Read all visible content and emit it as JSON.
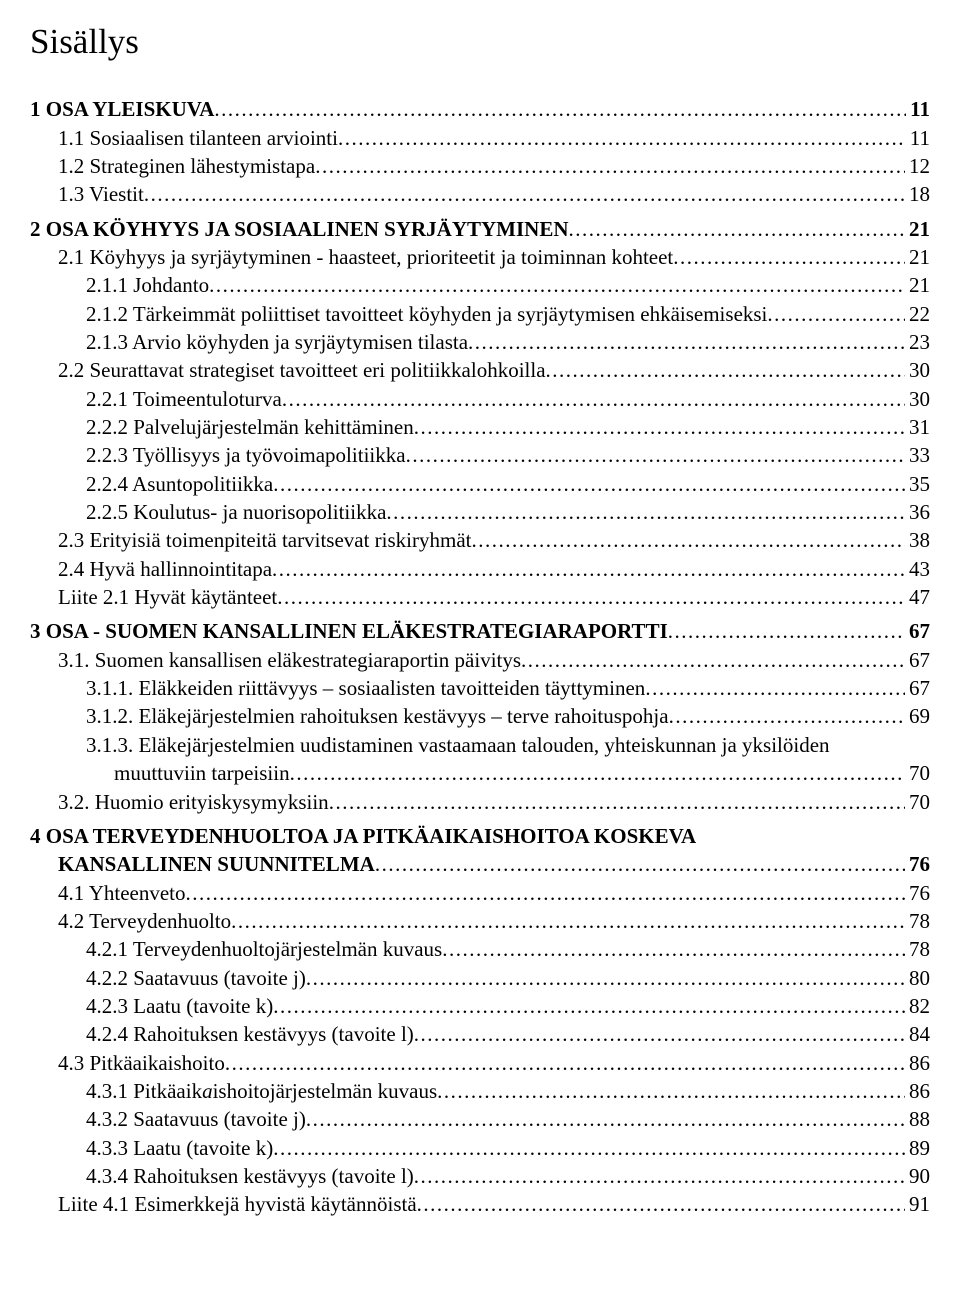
{
  "title": "Sisällys",
  "entries": [
    {
      "indent": 0,
      "bold": true,
      "text": "1 OSA YLEISKUVA",
      "page": "11",
      "gapBefore": false
    },
    {
      "indent": 1,
      "bold": false,
      "text": "1.1 Sosiaalisen tilanteen arviointi",
      "page": "11",
      "gapBefore": false
    },
    {
      "indent": 1,
      "bold": false,
      "text": "1.2 Strateginen lähestymistapa",
      "page": "12",
      "gapBefore": false
    },
    {
      "indent": 1,
      "bold": false,
      "text": "1.3 Viestit",
      "page": "18",
      "gapBefore": false
    },
    {
      "indent": 0,
      "bold": true,
      "text": "2 OSA KÖYHYYS JA SOSIAALINEN SYRJÄYTYMINEN",
      "page": "21",
      "gapBefore": true
    },
    {
      "indent": 1,
      "bold": false,
      "text": "2.1 Köyhyys ja syrjäytyminen - haasteet, prioriteetit ja toiminnan kohteet",
      "page": "21",
      "gapBefore": false
    },
    {
      "indent": 2,
      "bold": false,
      "text": "2.1.1 Johdanto",
      "page": "21",
      "gapBefore": false
    },
    {
      "indent": 2,
      "bold": false,
      "text": "2.1.2 Tärkeimmät poliittiset tavoitteet köyhyden ja syrjäytymisen ehkäisemiseksi",
      "page": "22",
      "gapBefore": false
    },
    {
      "indent": 2,
      "bold": false,
      "text": "2.1.3 Arvio köyhyden ja syrjäytymisen tilasta",
      "page": "23",
      "gapBefore": false
    },
    {
      "indent": 1,
      "bold": false,
      "text": "2.2 Seurattavat strategiset tavoitteet eri politiikkalohkoilla",
      "page": "30",
      "gapBefore": false
    },
    {
      "indent": 2,
      "bold": false,
      "text": "2.2.1 Toimeentuloturva",
      "page": "30",
      "gapBefore": false
    },
    {
      "indent": 2,
      "bold": false,
      "text": "2.2.2 Palvelujärjestelmän kehittäminen",
      "page": "31",
      "gapBefore": false
    },
    {
      "indent": 2,
      "bold": false,
      "text": "2.2.3 Työllisyys ja työvoimapolitiikka",
      "page": "33",
      "gapBefore": false
    },
    {
      "indent": 2,
      "bold": false,
      "text": "2.2.4 Asuntopolitiikka",
      "page": "35",
      "gapBefore": false
    },
    {
      "indent": 2,
      "bold": false,
      "text": "2.2.5 Koulutus- ja nuorisopolitiikka",
      "page": "36",
      "gapBefore": false
    },
    {
      "indent": 1,
      "bold": false,
      "text": "2.3 Erityisiä toimenpiteitä tarvitsevat riskiryhmät",
      "page": "38",
      "gapBefore": false
    },
    {
      "indent": 1,
      "bold": false,
      "text": "2.4 Hyvä hallinnointitapa",
      "page": "43",
      "gapBefore": false
    },
    {
      "indent": 1,
      "bold": false,
      "text": "Liite 2.1 Hyvät käytänteet",
      "page": "47",
      "gapBefore": false
    },
    {
      "indent": 0,
      "bold": true,
      "text": "3 OSA - SUOMEN KANSALLINEN ELÄKESTRATEGIARAPORTTI",
      "page": "67",
      "gapBefore": true
    },
    {
      "indent": 1,
      "bold": false,
      "text": "3.1. Suomen kansallisen eläkestrategiaraportin päivitys",
      "page": "67",
      "gapBefore": false
    },
    {
      "indent": 2,
      "bold": false,
      "text": "3.1.1. Eläkkeiden riittävyys – sosiaalisten tavoitteiden täyttyminen",
      "page": "67",
      "gapBefore": false
    },
    {
      "indent": 2,
      "bold": false,
      "text": "3.1.2. Eläkejärjestelmien rahoituksen kestävyys – terve rahoituspohja",
      "page": "69",
      "gapBefore": false
    },
    {
      "indent": 2,
      "bold": false,
      "textParts": [
        {
          "t": "3.1.3. Eläkejärjestelmien uudistaminen vastaamaan talouden, yhteiskunnan ja yksilöiden"
        },
        {
          "t": " muuttuviin tarpeisiin",
          "indentOverride": 3
        }
      ],
      "page": "70",
      "gapBefore": false,
      "multiline": true
    },
    {
      "indent": 1,
      "bold": false,
      "text": "3.2. Huomio erityiskysymyksiin",
      "page": "70",
      "gapBefore": false
    },
    {
      "indent": 0,
      "bold": true,
      "textParts": [
        {
          "t": "4 OSA TERVEYDENHUOLTOA JA PITKÄAIKAISHOITOA KOSKEVA"
        },
        {
          "t": "KANSALLINEN SUUNNITELMA",
          "indentOverride": 1
        }
      ],
      "page": "76",
      "gapBefore": true,
      "multiline": true
    },
    {
      "indent": 1,
      "bold": false,
      "text": "4.1 Yhteenveto",
      "page": "76",
      "gapBefore": false
    },
    {
      "indent": 1,
      "bold": false,
      "text": "4.2 Terveydenhuolto",
      "page": "78",
      "gapBefore": false
    },
    {
      "indent": 2,
      "bold": false,
      "text": "4.2.1 Terveydenhuoltojärjestelmän kuvaus",
      "page": "78",
      "gapBefore": false
    },
    {
      "indent": 2,
      "bold": false,
      "text": "4.2.2 Saatavuus (tavoite j)",
      "page": "80",
      "gapBefore": false
    },
    {
      "indent": 2,
      "bold": false,
      "text": "4.2.3 Laatu (tavoite k)",
      "page": "82",
      "gapBefore": false
    },
    {
      "indent": 2,
      "bold": false,
      "text": "4.2.4 Rahoituksen kestävyys (tavoite l)",
      "page": "84",
      "gapBefore": false
    },
    {
      "indent": 1,
      "bold": false,
      "text": "4.3 Pitkäaikaishoito",
      "page": "86",
      "gapBefore": false
    },
    {
      "indent": 2,
      "bold": false,
      "textParts": [
        {
          "t": "4.3.1 Pitkäaik"
        },
        {
          "t": "a",
          "italic": true
        },
        {
          "t": "ishoitojärjestelmän kuvaus"
        }
      ],
      "page": "86",
      "gapBefore": false
    },
    {
      "indent": 2,
      "bold": false,
      "text": "4.3.2 Saatavuus (tavoite j)",
      "page": "88",
      "gapBefore": false
    },
    {
      "indent": 2,
      "bold": false,
      "text": "4.3.3 Laatu (tavoite k)",
      "page": "89",
      "gapBefore": false
    },
    {
      "indent": 2,
      "bold": false,
      "text": "4.3.4 Rahoituksen kestävyys (tavoite l)",
      "page": "90",
      "gapBefore": false
    },
    {
      "indent": 1,
      "bold": false,
      "text": "Liite 4.1 Esimerkkejä hyvistä käytännöistä",
      "page": "91",
      "gapBefore": false
    }
  ]
}
